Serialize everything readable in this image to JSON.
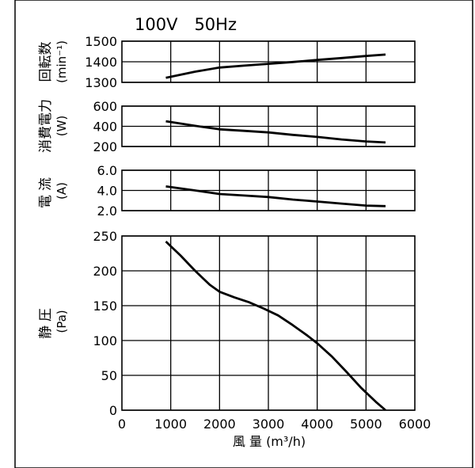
{
  "chart_data": [
    {
      "type": "line",
      "title": "100V　50Hz",
      "ylabel": "回転数",
      "yunit": "(min⁻¹)",
      "ylim": [
        1300,
        1500
      ],
      "yticks": [
        "1300",
        "1400",
        "1500"
      ],
      "xlim": [
        0,
        6000
      ],
      "series": [
        {
          "x": [
            900,
            1500,
            2000,
            2500,
            3000,
            3500,
            4000,
            4500,
            5000,
            5400
          ],
          "y": [
            1322,
            1352,
            1372,
            1381,
            1390,
            1399,
            1409,
            1418,
            1428,
            1435
          ]
        }
      ]
    },
    {
      "type": "line",
      "ylabel": "消費電力",
      "yunit": "(W)",
      "ylim": [
        200,
        600
      ],
      "yticks": [
        "200",
        "400",
        "600"
      ],
      "xlim": [
        0,
        6000
      ],
      "series": [
        {
          "x": [
            900,
            1500,
            2000,
            2500,
            3000,
            3500,
            4000,
            4500,
            5000,
            5400
          ],
          "y": [
            450,
            405,
            370,
            355,
            340,
            315,
            295,
            270,
            250,
            240
          ]
        }
      ]
    },
    {
      "type": "line",
      "ylabel": "電流",
      "yunit": "(A)",
      "ylim": [
        2.0,
        6.0
      ],
      "yticks": [
        "2.0",
        "4.0",
        "6.0"
      ],
      "xlim": [
        0,
        6000
      ],
      "series": [
        {
          "x": [
            900,
            1500,
            2000,
            2500,
            3000,
            3500,
            4000,
            4500,
            5000,
            5400
          ],
          "y": [
            4.4,
            4.0,
            3.65,
            3.5,
            3.35,
            3.1,
            2.9,
            2.7,
            2.5,
            2.45
          ]
        }
      ]
    },
    {
      "type": "line",
      "ylabel": "静圧",
      "yunit": "(Pa)",
      "ylim": [
        0,
        250
      ],
      "yticks": [
        "0",
        "50",
        "100",
        "150",
        "200",
        "250"
      ],
      "xlim": [
        0,
        6000
      ],
      "xticks": [
        "0",
        "1000",
        "2000",
        "3000",
        "4000",
        "5000",
        "6000"
      ],
      "xlabel": "風 量 (m³/h)",
      "series": [
        {
          "x": [
            900,
            1200,
            1500,
            1800,
            2000,
            2300,
            2600,
            2900,
            3200,
            3500,
            3800,
            4000,
            4300,
            4600,
            4900,
            5200,
            5400
          ],
          "y": [
            242,
            222,
            200,
            180,
            170,
            162,
            155,
            146,
            136,
            122,
            107,
            96,
            77,
            55,
            32,
            12,
            0
          ]
        }
      ]
    }
  ]
}
